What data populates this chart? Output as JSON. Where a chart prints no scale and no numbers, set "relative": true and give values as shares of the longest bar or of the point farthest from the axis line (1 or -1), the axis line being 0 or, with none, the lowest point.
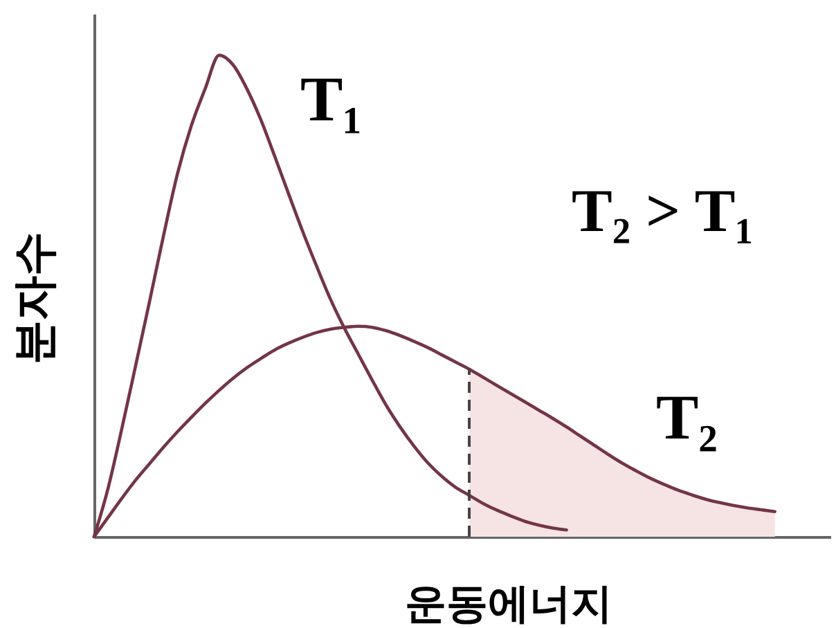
{
  "chart_data": {
    "type": "line",
    "relative": true,
    "xlabel": "운동에너지",
    "ylabel": "분자수",
    "categories": [
      null,
      null,
      null,
      null,
      null,
      null,
      null,
      null,
      null,
      null,
      null,
      null,
      null,
      null,
      null,
      null,
      null,
      null,
      null,
      null,
      null,
      null,
      null,
      null,
      null,
      null,
      null,
      null,
      null,
      null,
      null,
      null,
      null,
      null,
      null,
      null,
      null,
      null,
      null,
      null,
      null,
      null,
      null,
      null,
      null,
      null,
      null,
      null,
      null,
      null,
      null,
      null,
      null,
      null
    ],
    "series": [
      {
        "name": "T₁",
        "color": "#733547",
        "values": [
          0,
          0.1,
          0.225,
          0.357,
          0.49,
          0.626,
          0.754,
          0.854,
          0.931,
          1,
          0.98,
          0.93,
          0.866,
          0.79,
          0.712,
          0.635,
          0.563,
          0.494,
          0.434,
          0.38,
          0.326,
          0.274,
          0.229,
          0.189,
          0.154,
          0.126,
          0.103,
          0.086,
          0.069,
          0.055,
          0.043,
          0.032,
          0.024,
          0.018,
          0.014,
          null,
          null,
          null,
          null,
          null,
          null,
          null,
          null,
          null,
          null,
          null,
          null,
          null,
          null,
          null,
          null,
          null,
          null,
          null
        ]
      },
      {
        "name": "T₂",
        "color": "#733547",
        "values": [
          0,
          0.04,
          0.08,
          0.118,
          0.152,
          0.186,
          0.218,
          0.248,
          0.277,
          0.304,
          0.329,
          0.351,
          0.37,
          0.388,
          0.402,
          0.414,
          0.424,
          0.431,
          0.435,
          0.437,
          0.435,
          0.428,
          0.418,
          0.406,
          0.393,
          0.378,
          0.363,
          0.348,
          0.331,
          0.314,
          0.297,
          0.28,
          0.263,
          0.246,
          0.228,
          0.209,
          0.19,
          0.171,
          0.153,
          0.137,
          0.122,
          0.109,
          0.097,
          0.087,
          0.078,
          0.071,
          0.065,
          0.06,
          0.056,
          0.052,
          null,
          null,
          null,
          null
        ]
      },
      {
        "type": "area",
        "color": "#f6e4e4",
        "values": [
          null,
          null,
          null,
          null,
          null,
          null,
          null,
          null,
          null,
          null,
          null,
          null,
          null,
          null,
          null,
          null,
          null,
          null,
          null,
          null,
          null,
          null,
          null,
          null,
          null,
          null,
          null,
          0.348,
          0.331,
          0.314,
          0.297,
          0.28,
          0.263,
          0.246,
          0.228,
          0.209,
          0.19,
          0.171,
          0.153,
          0.137,
          0.122,
          0.109,
          0.097,
          0.087,
          0.078,
          0.071,
          0.065,
          0.06,
          0.056,
          0.052,
          null,
          null,
          null,
          null
        ]
      }
    ],
    "annotations": [
      "T₂ > T₁"
    ]
  }
}
